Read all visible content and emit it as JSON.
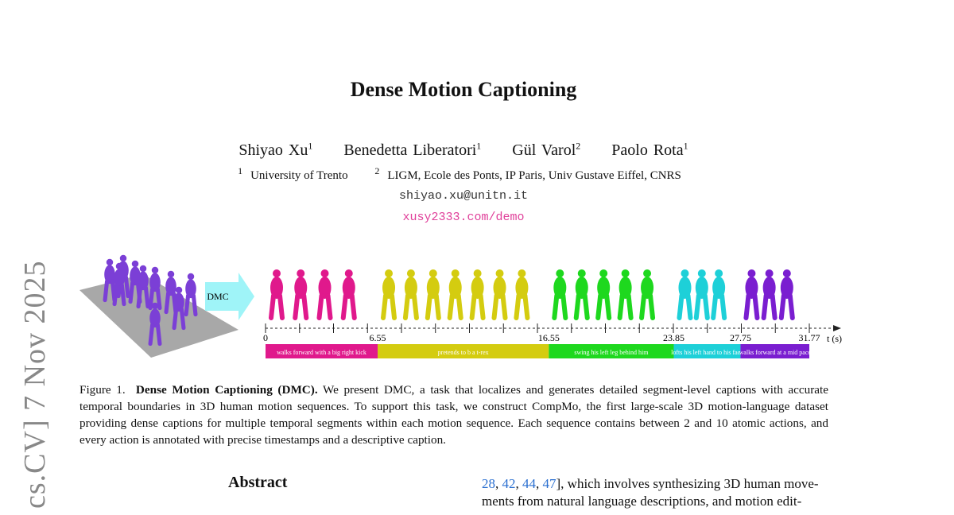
{
  "paper": {
    "title": "Dense Motion Captioning",
    "authors": [
      {
        "name": "Shiyao Xu",
        "aff": "1"
      },
      {
        "name": "Benedetta Liberatori",
        "aff": "1"
      },
      {
        "name": "Gül Varol",
        "aff": "2"
      },
      {
        "name": "Paolo Rota",
        "aff": "1"
      }
    ],
    "affiliations": [
      {
        "num": "1",
        "name": "University of Trento"
      },
      {
        "num": "2",
        "name": "LIGM, Ecole des Ponts, IP Paris, Univ Gustave Eiffel, CNRS"
      }
    ],
    "email": "shiyao.xu@unitn.it",
    "link": "xusy2333.com/demo",
    "arxiv_stamp": "cs.CV]  7 Nov 2025"
  },
  "figure": {
    "arrow_label": "DMC",
    "axis_label": "t (s)",
    "ticks": [
      "0",
      "6.55",
      "16.55",
      "23.85",
      "27.75",
      "31.77"
    ],
    "segments": [
      {
        "start": 0,
        "end": 6.55,
        "caption": "walks forward with a big right kick",
        "color": "#e0198c"
      },
      {
        "start": 6.55,
        "end": 16.55,
        "caption": "pretends to b a t-rex",
        "color": "#d4cc10"
      },
      {
        "start": 16.55,
        "end": 23.85,
        "caption": "swing his left leg behind him",
        "color": "#1ed81e"
      },
      {
        "start": 23.85,
        "end": 27.75,
        "caption": "lofts his left hand to his face",
        "color": "#1ed0d8"
      },
      {
        "start": 27.75,
        "end": 31.77,
        "caption": "walks forward at a mid pace",
        "color": "#7a1ed0"
      }
    ],
    "caption_label": "Figure 1.",
    "caption_bold": "Dense Motion Captioning (DMC).",
    "caption_text": "We present DMC, a task that localizes and generates detailed segment-level captions with accurate temporal boundaries in 3D human motion sequences. To support this task, we construct CompMo, the first large-scale 3D motion-language dataset providing dense captions for multiple temporal segments within each motion sequence. Each sequence contains between 2 and 10 atomic actions, and every action is annotated with precise timestamps and a descriptive caption."
  },
  "abstract": {
    "heading": "Abstract"
  },
  "right_column": {
    "refs": [
      "28",
      "42",
      "44",
      "47"
    ],
    "text_1": "], which involves synthesizing 3D human move-",
    "text_2": "ments from natural language descriptions, and motion edit-"
  }
}
